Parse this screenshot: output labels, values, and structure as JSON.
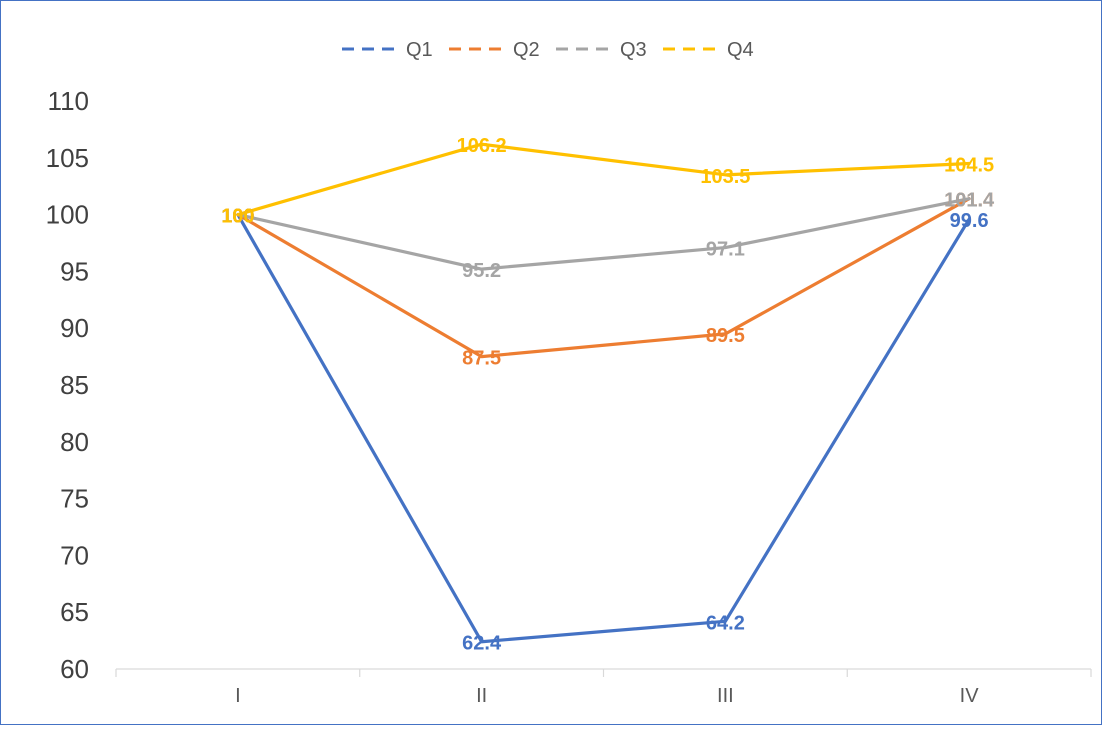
{
  "chart_data": {
    "type": "line",
    "title": "",
    "xlabel": "",
    "ylabel": "",
    "categories": [
      "I",
      "II",
      "III",
      "IV"
    ],
    "ylim": [
      60,
      110
    ],
    "ytick_step": 5,
    "y_ticks": [
      "60",
      "65",
      "70",
      "75",
      "80",
      "85",
      "90",
      "95",
      "100",
      "105",
      "110"
    ],
    "grid": false,
    "legend_position": "top",
    "data_labels": true,
    "series": [
      {
        "name": "Q1",
        "color": "#4472C4",
        "values": [
          100,
          62.4,
          64.2,
          99.6
        ],
        "labels": [
          "100",
          "62.4",
          "64.2",
          "99.6"
        ]
      },
      {
        "name": "Q2",
        "color": "#ED7D31",
        "values": [
          100,
          87.5,
          89.5,
          101.4
        ],
        "labels": [
          "100",
          "87.5",
          "89.5",
          "101.4"
        ]
      },
      {
        "name": "Q3",
        "color": "#A5A5A5",
        "values": [
          100,
          95.2,
          97.1,
          101.4
        ],
        "labels": [
          "100",
          "95.2",
          "97.1",
          "101.4"
        ]
      },
      {
        "name": "Q4",
        "color": "#FFC000",
        "values": [
          100,
          106.2,
          103.5,
          104.5
        ],
        "labels": [
          "100",
          "106.2",
          "103.5",
          "104.5"
        ]
      }
    ]
  }
}
